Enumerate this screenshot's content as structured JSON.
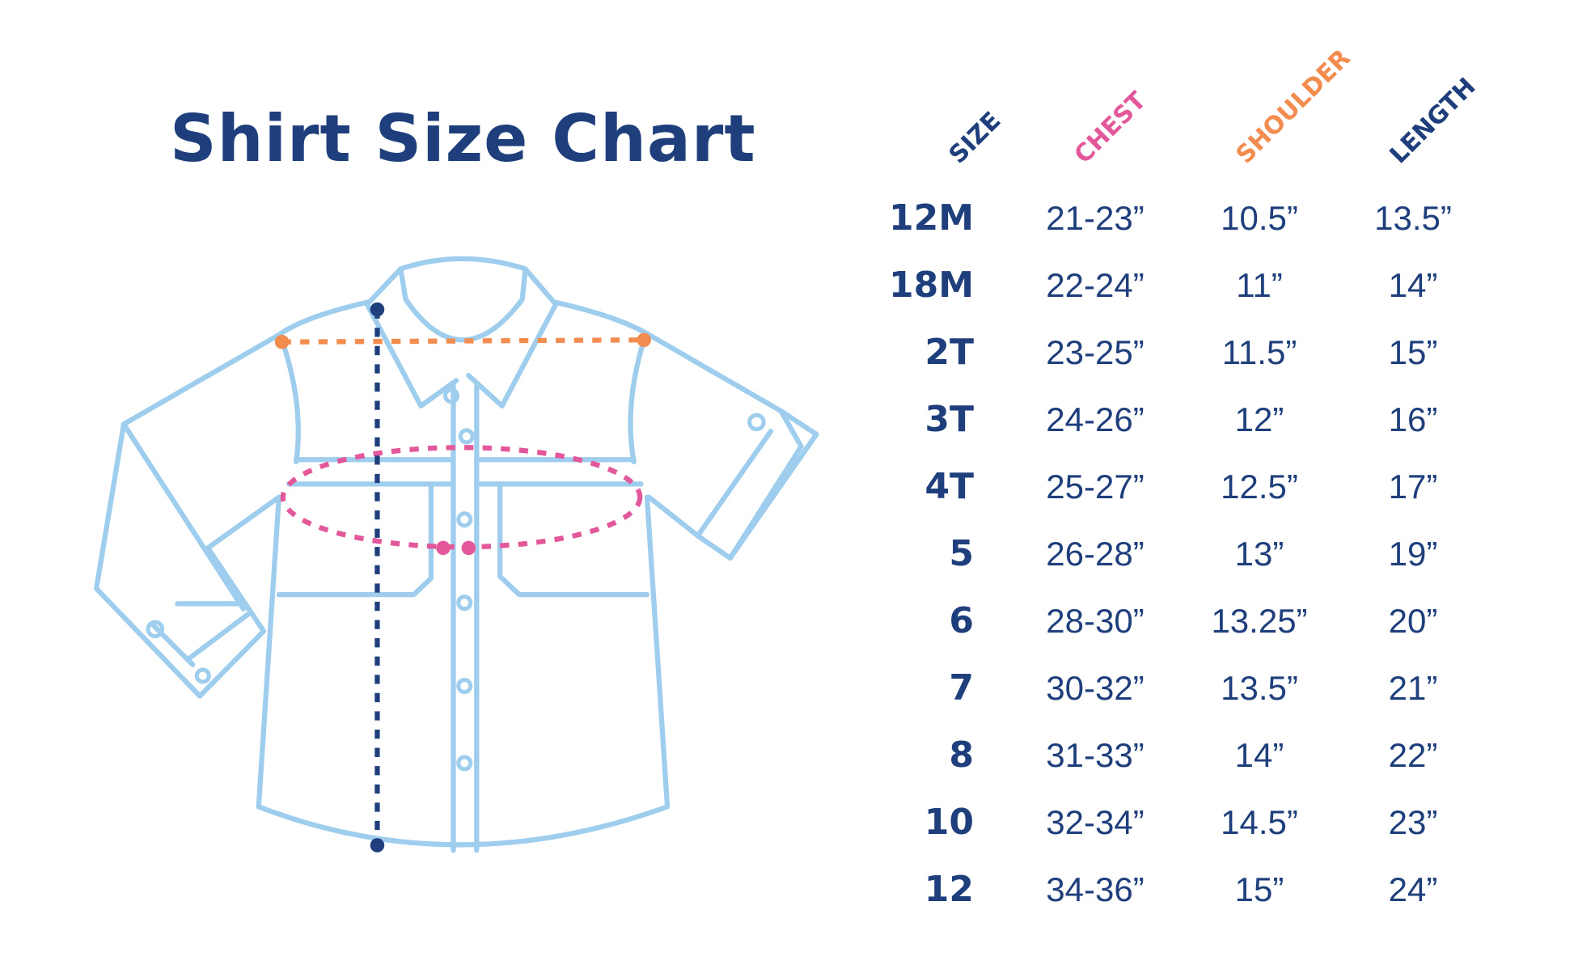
{
  "chart_data": {
    "type": "table",
    "title": "Shirt Size Chart",
    "columns": [
      "SIZE",
      "CHEST",
      "SHOULDER",
      "LENGTH"
    ],
    "rows": [
      {
        "size": "12M",
        "chest": "21-23”",
        "shoulder": "10.5”",
        "length": "13.5”"
      },
      {
        "size": "18M",
        "chest": "22-24”",
        "shoulder": "11”",
        "length": "14”"
      },
      {
        "size": "2T",
        "chest": "23-25”",
        "shoulder": "11.5”",
        "length": "15”"
      },
      {
        "size": "3T",
        "chest": "24-26”",
        "shoulder": "12”",
        "length": "16”"
      },
      {
        "size": "4T",
        "chest": "25-27”",
        "shoulder": "12.5”",
        "length": "17”"
      },
      {
        "size": "5",
        "chest": "26-28”",
        "shoulder": "13”",
        "length": "19”"
      },
      {
        "size": "6",
        "chest": "28-30”",
        "shoulder": "13.25”",
        "length": "20”"
      },
      {
        "size": "7",
        "chest": "30-32”",
        "shoulder": "13.5”",
        "length": "21”"
      },
      {
        "size": "8",
        "chest": "31-33”",
        "shoulder": "14”",
        "length": "22”"
      },
      {
        "size": "10",
        "chest": "32-34”",
        "shoulder": "14.5”",
        "length": "23”"
      },
      {
        "size": "12",
        "chest": "34-36”",
        "shoulder": "15”",
        "length": "24”"
      }
    ]
  },
  "colors": {
    "navy": "#1e3f7c",
    "chest": "#e2589a",
    "shoulder": "#f38c4f",
    "shirt_outline": "#9ecdee"
  },
  "icons": {
    "illustration": "shirt-measurement-diagram"
  }
}
